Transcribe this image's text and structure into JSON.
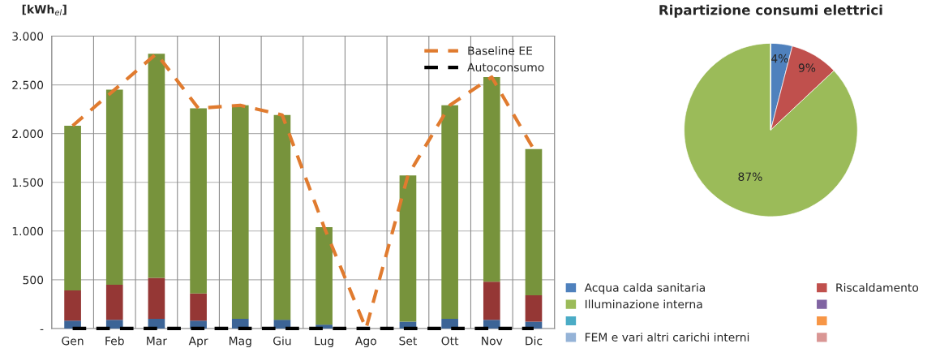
{
  "chart_data": [
    {
      "type": "bar",
      "stacked": true,
      "ylabel": "[kWh$_{el}$]",
      "categories": [
        "Gen",
        "Feb",
        "Mar",
        "Apr",
        "Mag",
        "Giu",
        "Lug",
        "Ago",
        "Set",
        "Ott",
        "Nov",
        "Dic"
      ],
      "series": [
        {
          "color": "#3c6496",
          "values": [
            80,
            90,
            100,
            80,
            100,
            90,
            40,
            0,
            70,
            100,
            90,
            70
          ]
        },
        {
          "color": "#953735",
          "values": [
            310,
            360,
            420,
            280,
            0,
            0,
            0,
            0,
            0,
            0,
            390,
            270
          ]
        },
        {
          "color": "#77933c",
          "values": [
            1690,
            2000,
            2300,
            1900,
            2190,
            2100,
            1000,
            0,
            1500,
            2190,
            2100,
            1500
          ]
        },
        {
          "type": "line",
          "name": "Baseline EE",
          "color": "#e07b2f",
          "line_style": "dashed",
          "values": [
            2080,
            2450,
            2820,
            2260,
            2290,
            2190,
            1040,
            0,
            1570,
            2290,
            2580,
            1840
          ]
        },
        {
          "type": "line",
          "name": "Autoconsumo",
          "color": "#000000",
          "line_style": "dashed",
          "values": [
            0,
            0,
            0,
            0,
            0,
            0,
            0,
            0,
            0,
            0,
            0,
            0
          ]
        }
      ],
      "ylim": [
        0,
        3000
      ],
      "yticks": [
        {
          "value": 0,
          "label": "-"
        },
        {
          "value": 500,
          "label": "500"
        },
        {
          "value": 1000,
          "label": "1.000"
        },
        {
          "value": 1500,
          "label": "1.500"
        },
        {
          "value": 2000,
          "label": "2.000"
        },
        {
          "value": 2500,
          "label": "2.500"
        },
        {
          "value": 3000,
          "label": "3.000"
        }
      ],
      "grid": true,
      "legend": "top right"
    },
    {
      "type": "pie",
      "title": "Ripartizione consumi elettrici",
      "categories": [
        "Acqua calda sanitaria",
        "Riscaldamento",
        "Illuminazione interna",
        null,
        null,
        null,
        "FEM e vari altri carichi interni",
        null
      ],
      "values": [
        4,
        9,
        87,
        0,
        0,
        0,
        0,
        0
      ],
      "colors": [
        "#4f81bd",
        "#c0504d",
        "#9bbb59",
        "#8064a2",
        "#4bacc6",
        "#f79646",
        "#95b3d7",
        "#d99694"
      ],
      "value_labels": [
        "4%",
        "9%",
        "87%",
        null,
        null,
        null,
        null,
        null
      ],
      "legend": "bottom"
    }
  ]
}
